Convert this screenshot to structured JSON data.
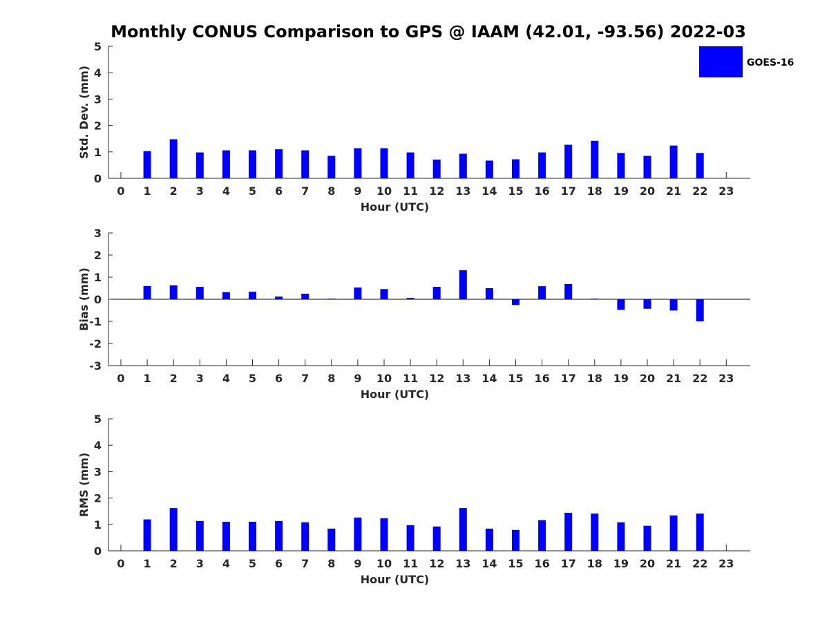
{
  "title": "Monthly CONUS Comparison to GPS @ IAAM (42.01, -93.56) 2022-03",
  "legend": {
    "label": "GOES-16",
    "color": "#0000ff"
  },
  "colors": {
    "bar": "#0000ff",
    "axis": "#262626"
  },
  "chart_data": [
    {
      "type": "bar",
      "name": "std-dev",
      "ylabel": "Std. Dev. (mm)",
      "xlabel": "Hour (UTC)",
      "ylim": [
        0,
        5
      ],
      "yticks": [
        0,
        1,
        2,
        3,
        4,
        5
      ],
      "categories": [
        "0",
        "1",
        "2",
        "3",
        "4",
        "5",
        "6",
        "7",
        "8",
        "9",
        "10",
        "11",
        "12",
        "13",
        "14",
        "15",
        "16",
        "17",
        "18",
        "19",
        "20",
        "21",
        "22",
        "23"
      ],
      "values": [
        null,
        1.03,
        1.48,
        0.98,
        1.06,
        1.06,
        1.1,
        1.06,
        0.85,
        1.14,
        1.14,
        0.98,
        0.71,
        0.93,
        0.67,
        0.72,
        0.98,
        1.27,
        1.42,
        0.96,
        0.85,
        1.24,
        0.96,
        null
      ]
    },
    {
      "type": "bar",
      "name": "bias",
      "ylabel": "Bias (mm)",
      "xlabel": "Hour (UTC)",
      "ylim": [
        -3,
        3
      ],
      "yticks": [
        -3,
        -2,
        -1,
        0,
        1,
        2,
        3
      ],
      "categories": [
        "0",
        "1",
        "2",
        "3",
        "4",
        "5",
        "6",
        "7",
        "8",
        "9",
        "10",
        "11",
        "12",
        "13",
        "14",
        "15",
        "16",
        "17",
        "18",
        "19",
        "20",
        "21",
        "22",
        "23"
      ],
      "values": [
        null,
        0.6,
        0.63,
        0.56,
        0.32,
        0.34,
        0.12,
        0.25,
        0.03,
        0.53,
        0.46,
        0.06,
        0.56,
        1.31,
        0.5,
        -0.26,
        0.59,
        0.69,
        0.03,
        -0.48,
        -0.43,
        -0.51,
        -1.0,
        null
      ]
    },
    {
      "type": "bar",
      "name": "rms",
      "ylabel": "RMS (mm)",
      "xlabel": "Hour (UTC)",
      "ylim": [
        0,
        5
      ],
      "yticks": [
        0,
        1,
        2,
        3,
        4,
        5
      ],
      "categories": [
        "0",
        "1",
        "2",
        "3",
        "4",
        "5",
        "6",
        "7",
        "8",
        "9",
        "10",
        "11",
        "12",
        "13",
        "14",
        "15",
        "16",
        "17",
        "18",
        "19",
        "20",
        "21",
        "22",
        "23"
      ],
      "values": [
        null,
        1.19,
        1.62,
        1.13,
        1.1,
        1.1,
        1.13,
        1.08,
        0.84,
        1.26,
        1.23,
        0.97,
        0.92,
        1.62,
        0.84,
        0.79,
        1.16,
        1.44,
        1.41,
        1.08,
        0.95,
        1.34,
        1.41,
        null
      ]
    }
  ]
}
